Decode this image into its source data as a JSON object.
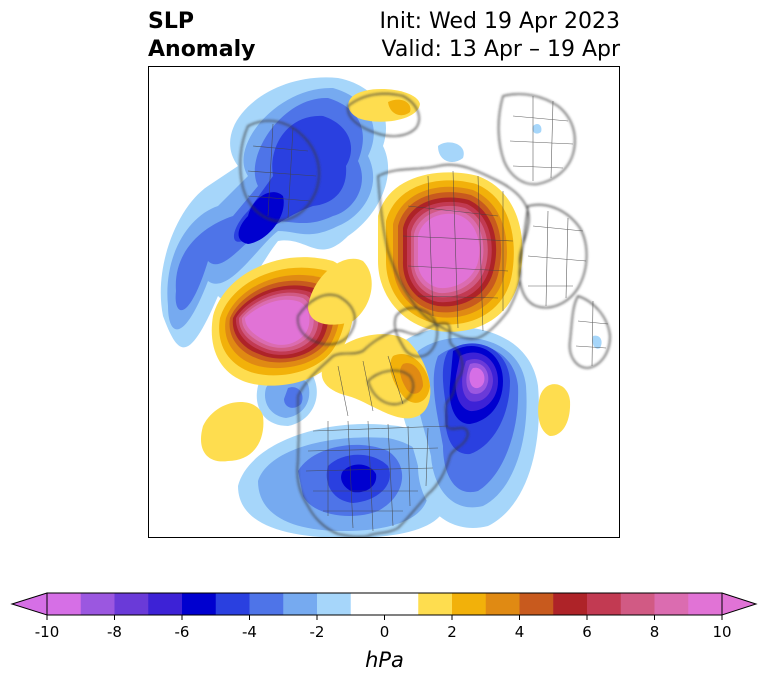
{
  "title": {
    "variable_line1": "SLP",
    "variable_line2": "Anomaly",
    "init": "Init: Wed 19 Apr 2023",
    "valid": "Valid: 13 Apr – 19 Apr"
  },
  "colorbar": {
    "unit": "hPa",
    "min": -10,
    "max": 10,
    "extend": "both",
    "ticks": [
      "-10",
      "-8",
      "-6",
      "-4",
      "-2",
      "0",
      "2",
      "4",
      "6",
      "8",
      "10"
    ],
    "bins": [
      {
        "range": [
          -10,
          -9
        ],
        "color": "#d66fe6"
      },
      {
        "range": [
          -9,
          -8
        ],
        "color": "#9b57e0"
      },
      {
        "range": [
          -8,
          -7
        ],
        "color": "#6a3ad8"
      },
      {
        "range": [
          -7,
          -6
        ],
        "color": "#3d22d6"
      },
      {
        "range": [
          -6,
          -5
        ],
        "color": "#0000cf"
      },
      {
        "range": [
          -5,
          -4
        ],
        "color": "#2a40e0"
      },
      {
        "range": [
          -4,
          -3
        ],
        "color": "#4e74e8"
      },
      {
        "range": [
          -3,
          -2
        ],
        "color": "#76aaf0"
      },
      {
        "range": [
          -2,
          -1
        ],
        "color": "#a6d6fa"
      },
      {
        "range": [
          -1,
          1
        ],
        "color": "#ffffff"
      },
      {
        "range": [
          1,
          2
        ],
        "color": "#fedd4f"
      },
      {
        "range": [
          2,
          3
        ],
        "color": "#f2b10a"
      },
      {
        "range": [
          3,
          4
        ],
        "color": "#e08a13"
      },
      {
        "range": [
          4,
          5
        ],
        "color": "#c85a1e"
      },
      {
        "range": [
          5,
          6
        ],
        "color": "#ae2328"
      },
      {
        "range": [
          6,
          7
        ],
        "color": "#c23a52"
      },
      {
        "range": [
          7,
          8
        ],
        "color": "#d15a84"
      },
      {
        "range": [
          8,
          9
        ],
        "color": "#db6cb0"
      },
      {
        "range": [
          9,
          10
        ],
        "color": "#e173d6"
      }
    ],
    "under_color": "#d66fe6",
    "over_color": "#e173d6"
  },
  "map": {
    "projection": "north-polar-stereographic",
    "anomaly_regions": [
      {
        "name": "aleutian-high",
        "sign": "positive",
        "peak_hpa": 10
      },
      {
        "name": "arctic-siberia-high",
        "sign": "positive",
        "peak_hpa": 10
      },
      {
        "name": "north-atlantic-low",
        "sign": "negative",
        "peak_hpa": -10
      },
      {
        "name": "europe-low",
        "sign": "negative",
        "peak_hpa": -6
      },
      {
        "name": "eastern-us-low",
        "sign": "negative",
        "peak_hpa": -6
      },
      {
        "name": "northeast-pacific-low",
        "sign": "negative",
        "peak_hpa": -4
      }
    ]
  }
}
